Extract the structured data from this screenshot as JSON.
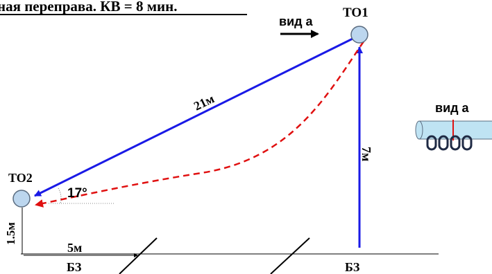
{
  "header": {
    "title": "ная переправа. КВ = 8 мин."
  },
  "points": {
    "to1": "ТО1",
    "to2": "ТО2"
  },
  "labels": {
    "view_a_arrow": "вид а",
    "view_a_detail": "вид а",
    "rope_length": "21м",
    "vertical_height": "7м",
    "angle": "17°",
    "low_height": "1.5м",
    "horizontal_distance": "5м",
    "safety_zone_left": "БЗ",
    "safety_zone_right": "БЗ"
  },
  "colors": {
    "rope": "#1a1ae6",
    "sag": "#e01010",
    "node_fill": "#bcd6ee",
    "node_stroke": "#5a6c80",
    "ink": "#000000",
    "carabiner": "#1f2a44",
    "pipe_fill": "#bfe3f3"
  },
  "icons": {
    "node": "anchor-circle-icon",
    "view_arrow": "arrow-right-icon",
    "carabiner": "carabiner-icon"
  }
}
